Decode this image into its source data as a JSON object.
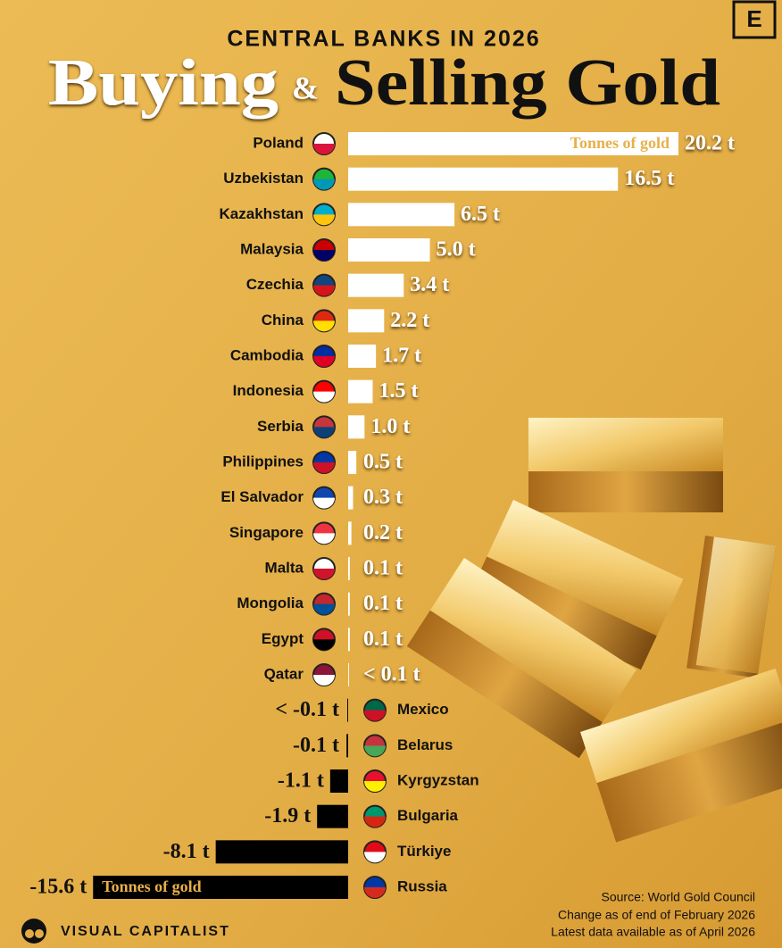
{
  "chart_data": {
    "type": "diverging_bar",
    "supertitle": "CENTRAL BANKS IN 2026",
    "title_left": "Buying",
    "title_connector": "&",
    "title_right": "Selling Gold",
    "unit_annotation": "Tonnes of gold",
    "categories": [
      "Poland",
      "Uzbekistan",
      "Kazakhstan",
      "Malaysia",
      "Czechia",
      "China",
      "Cambodia",
      "Indonesia",
      "Serbia",
      "Philippines",
      "El Salvador",
      "Singapore",
      "Malta",
      "Mongolia",
      "Egypt",
      "Qatar",
      "Mexico",
      "Belarus",
      "Kyrgyzstan",
      "Bulgaria",
      "Türkiye",
      "Russia"
    ],
    "values": [
      20.2,
      16.5,
      6.5,
      5.0,
      3.4,
      2.2,
      1.7,
      1.5,
      1.0,
      0.5,
      0.3,
      0.2,
      0.1,
      0.1,
      0.1,
      0.05,
      -0.05,
      -0.1,
      -1.1,
      -1.9,
      -8.1,
      -15.6
    ],
    "value_labels": [
      "20.2 t",
      "16.5 t",
      "6.5 t",
      "5.0 t",
      "3.4 t",
      "2.2 t",
      "1.7 t",
      "1.5 t",
      "1.0 t",
      "0.5 t",
      "0.3 t",
      "0.2 t",
      "0.1 t",
      "0.1 t",
      "0.1 t",
      "< 0.1 t",
      "< -0.1 t",
      "-0.1 t",
      "-1.1 t",
      "-1.9 t",
      "-8.1 t",
      "-15.6 t"
    ],
    "positive_color": "#ffffff",
    "negative_color": "#000000",
    "source": [
      "Source: World Gold Council",
      "Change as of end of February 2026",
      "Latest data available as of April 2026"
    ]
  },
  "branding": {
    "logo": "VISUAL CAPITALIST",
    "badge": "E"
  }
}
